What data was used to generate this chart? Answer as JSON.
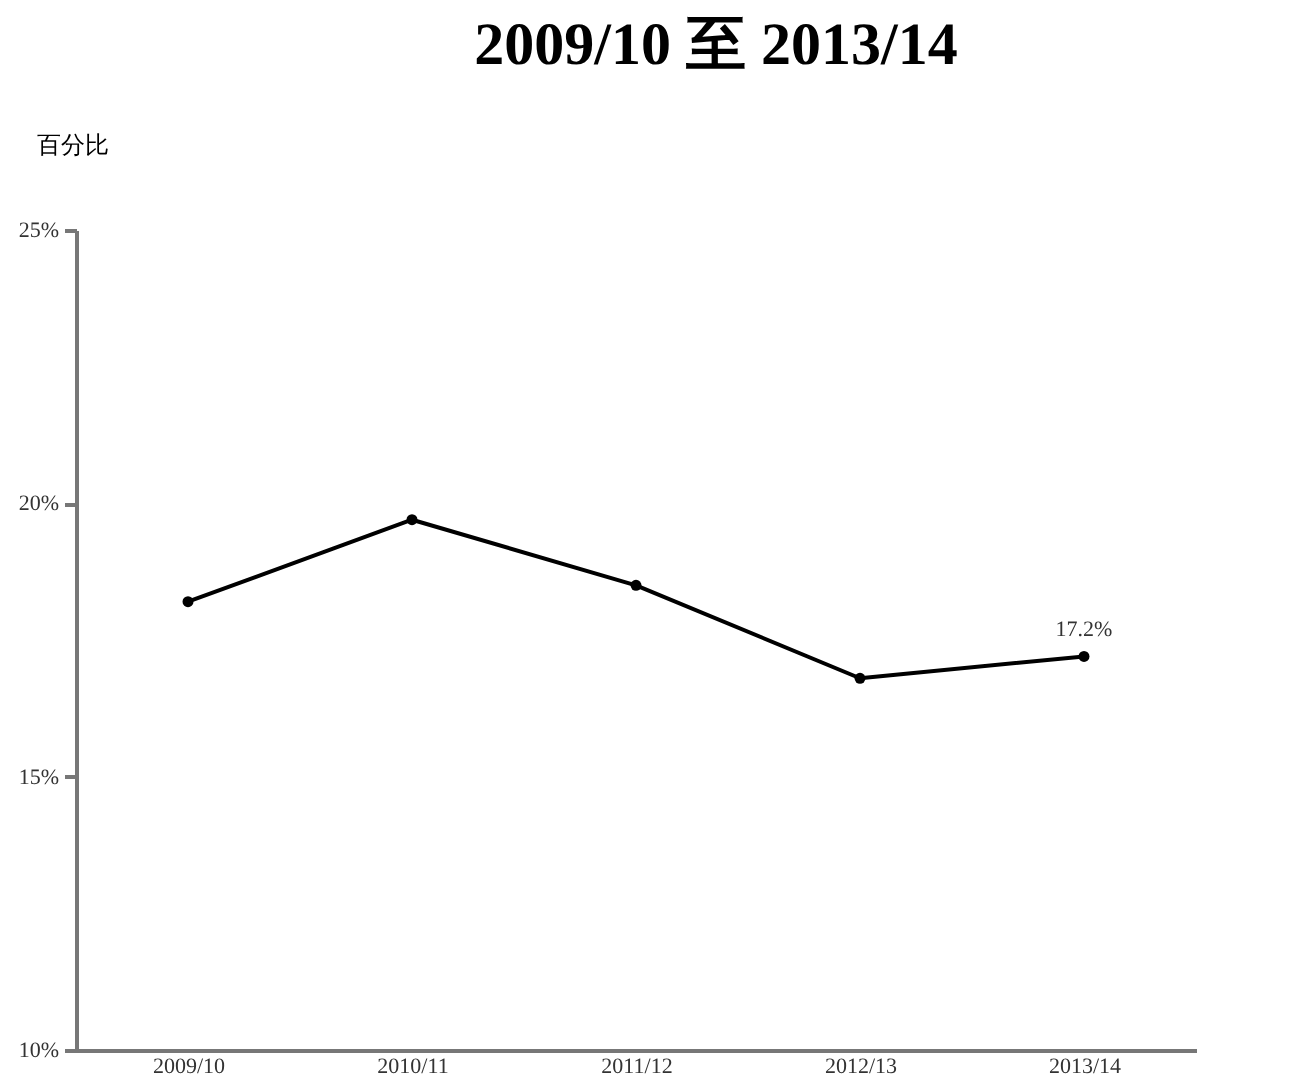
{
  "chart_data": {
    "type": "line",
    "title": "2009/10 至 2013/14",
    "ylabel": "百分比",
    "categories": [
      "2009/10",
      "2010/11",
      "2011/12",
      "2012/13",
      "2013/14"
    ],
    "series": [
      {
        "color": "#000000",
        "values": [
          18.2,
          19.7,
          18.5,
          16.8,
          17.2
        ]
      }
    ],
    "ylim": [
      10,
      25
    ],
    "yticks": [
      {
        "value": 10,
        "label": "10%"
      },
      {
        "value": 15,
        "label": "15%"
      },
      {
        "value": 20,
        "label": "20%"
      },
      {
        "value": 25,
        "label": "25%"
      }
    ],
    "annotations": [
      {
        "text": "17.2%",
        "x": "2013/14",
        "y": 17.2
      }
    ],
    "marker": "circle",
    "line_style": "solid"
  }
}
